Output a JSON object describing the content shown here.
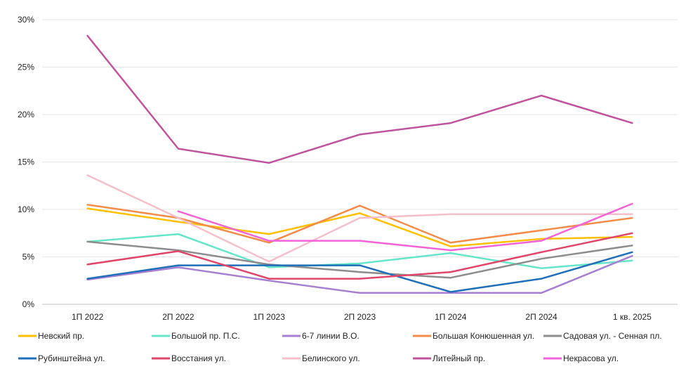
{
  "chart_data": {
    "type": "line",
    "categories": [
      "1П 2022",
      "2П 2022",
      "1П 2023",
      "2П 2023",
      "1П 2024",
      "2П 2024",
      "1 кв. 2025"
    ],
    "ylim": [
      0,
      30
    ],
    "yticks": [
      0,
      5,
      10,
      15,
      20,
      25,
      30
    ],
    "ytick_labels": [
      "0%",
      "5%",
      "10%",
      "15%",
      "20%",
      "25%",
      "30%"
    ],
    "grid": "horizontal",
    "legend": "bottom",
    "series": [
      {
        "name": "Невский пр.",
        "color": "#FFC000",
        "values": [
          10.1,
          8.7,
          7.4,
          9.6,
          6.1,
          6.9,
          7.1
        ]
      },
      {
        "name": "Большой пр. П.С.",
        "color": "#66E6C8",
        "values": [
          6.6,
          7.4,
          3.9,
          4.3,
          5.4,
          3.8,
          4.6
        ]
      },
      {
        "name": "6-7 линии В.О.",
        "color": "#A67FD1",
        "values": [
          2.6,
          3.9,
          2.5,
          1.2,
          1.2,
          1.2,
          5.1
        ]
      },
      {
        "name": "Большая Конюшенная ул.",
        "color": "#F28C48",
        "values": [
          10.5,
          9.1,
          6.5,
          10.4,
          6.5,
          7.8,
          9.1
        ]
      },
      {
        "name": "Садовая ул. - Сенная пл.",
        "color": "#8C8C8C",
        "values": [
          6.6,
          5.7,
          4.2,
          3.4,
          2.8,
          4.8,
          6.2
        ]
      },
      {
        "name": "Рубинштейна ул.",
        "color": "#1F6FB8",
        "values": [
          2.7,
          4.1,
          4.1,
          4.1,
          1.3,
          2.7,
          5.5
        ]
      },
      {
        "name": "Восстания ул.",
        "color": "#E0456A",
        "values": [
          4.2,
          5.6,
          2.7,
          2.7,
          3.4,
          5.5,
          7.5
        ]
      },
      {
        "name": "Белинского ул.",
        "color": "#F4BFCB",
        "values": [
          13.6,
          9.1,
          4.5,
          9.1,
          9.5,
          9.5,
          9.5
        ]
      },
      {
        "name": "Литейный пр.",
        "color": "#C0549C",
        "values": [
          28.3,
          16.4,
          14.9,
          17.9,
          19.1,
          22.0,
          19.1
        ]
      },
      {
        "name": "Некрасова ул.",
        "color": "#F163D6",
        "values": [
          null,
          9.8,
          6.7,
          6.7,
          5.7,
          6.7,
          10.6
        ]
      }
    ]
  }
}
